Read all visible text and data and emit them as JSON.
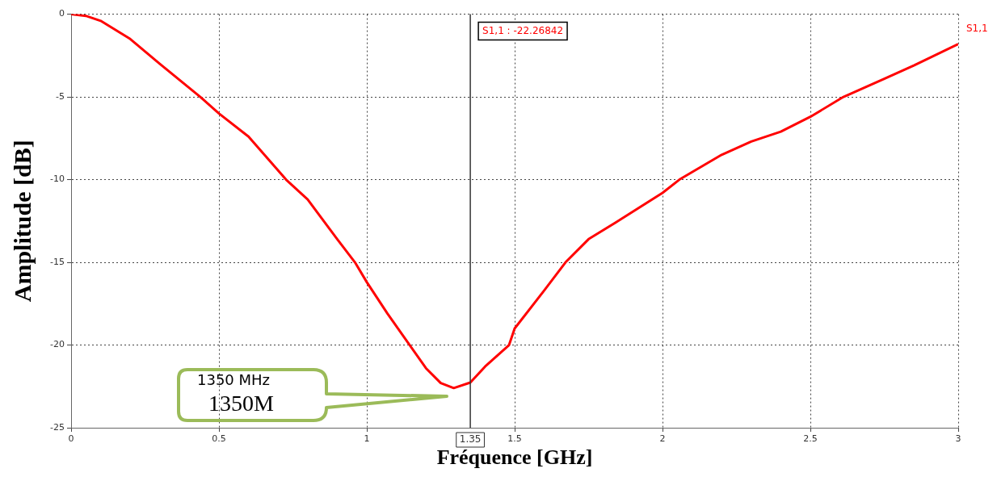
{
  "chart_data": {
    "type": "line",
    "xlabel": "Fréquence [GHz]",
    "ylabel": "Amplitude [dB]",
    "x": [
      0,
      0.05,
      0.1,
      0.2,
      0.3,
      0.437,
      0.5,
      0.6,
      0.727,
      0.8,
      0.9,
      0.96,
      1.0,
      1.07,
      1.145,
      1.2,
      1.25,
      1.294,
      1.35,
      1.4,
      1.481,
      1.5,
      1.6,
      1.672,
      1.75,
      1.85,
      2.0,
      2.057,
      2.2,
      2.3,
      2.4,
      2.5,
      2.612,
      2.75,
      2.85,
      3.0
    ],
    "series": [
      {
        "name": "S1,1",
        "color": "#ff0000",
        "values": [
          0,
          -0.1,
          -0.4,
          -1.5,
          -3.0,
          -5,
          -6.0,
          -7.4,
          -10,
          -11.2,
          -13.6,
          -15,
          -16.2,
          -18.1,
          -20,
          -21.4,
          -22.3,
          -22.6,
          -22.27,
          -21.3,
          -20,
          -19.0,
          -16.7,
          -15,
          -13.6,
          -12.5,
          -10.8,
          -10,
          -8.5,
          -7.7,
          -7.1,
          -6.2,
          -5,
          -3.9,
          -3.1,
          -1.8
        ]
      }
    ],
    "xlim": [
      0,
      3
    ],
    "xticks": [
      0,
      0.5,
      1,
      1.5,
      2,
      2.5,
      3
    ],
    "ylim": [
      -25,
      0
    ],
    "yticks": [
      -25,
      -20,
      -15,
      -10,
      -5,
      0
    ],
    "grid": true,
    "legend": false,
    "marker": "none",
    "line_style": "solid",
    "ref_lines": [
      {
        "axis": "x",
        "value": 1.35,
        "label": "1.35",
        "color": "#333333"
      }
    ],
    "annotations": [
      "S1,1 : -22.26842",
      "1350 MHz",
      "1350M"
    ]
  }
}
